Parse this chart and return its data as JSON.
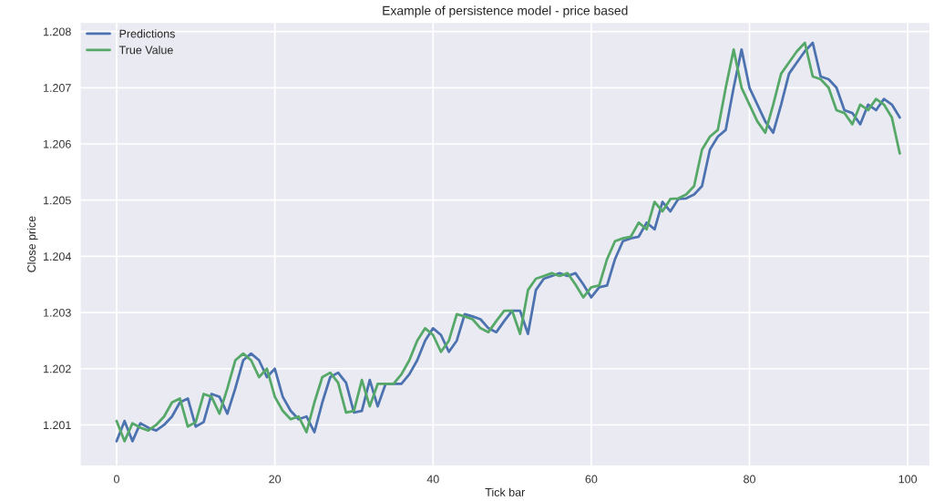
{
  "chart_data": {
    "type": "line",
    "title": "Example of persistence model - price based",
    "xlabel": "Tick bar",
    "ylabel": "Close price",
    "x": [
      0,
      1,
      2,
      3,
      4,
      5,
      6,
      7,
      8,
      9,
      10,
      11,
      12,
      13,
      14,
      15,
      16,
      17,
      18,
      19,
      20,
      21,
      22,
      23,
      24,
      25,
      26,
      27,
      28,
      29,
      30,
      31,
      32,
      33,
      34,
      35,
      36,
      37,
      38,
      39,
      40,
      41,
      42,
      43,
      44,
      45,
      46,
      47,
      48,
      49,
      50,
      51,
      52,
      53,
      54,
      55,
      56,
      57,
      58,
      59,
      60,
      61,
      62,
      63,
      64,
      65,
      66,
      67,
      68,
      69,
      70,
      71,
      72,
      73,
      74,
      75,
      76,
      77,
      78,
      79,
      80,
      81,
      82,
      83,
      84,
      85,
      86,
      87,
      88,
      89,
      90,
      91,
      92,
      93,
      94,
      95,
      96,
      97,
      98,
      99
    ],
    "series": [
      {
        "name": "Predictions",
        "color": "#4c72b0",
        "values": [
          1.20071,
          1.20107,
          1.20071,
          1.20103,
          1.20095,
          1.2009,
          1.201,
          1.20115,
          1.2014,
          1.20147,
          1.20097,
          1.20105,
          1.20155,
          1.2015,
          1.2012,
          1.20165,
          1.20215,
          1.20227,
          1.20215,
          1.20185,
          1.202,
          1.2015,
          1.20125,
          1.2011,
          1.20115,
          1.20087,
          1.2014,
          1.20185,
          1.20193,
          1.20175,
          1.20122,
          1.20125,
          1.2018,
          1.20133,
          1.20173,
          1.20173,
          1.20173,
          1.2019,
          1.20215,
          1.2025,
          1.20272,
          1.2026,
          1.2023,
          1.2025,
          1.20297,
          1.20293,
          1.20288,
          1.20272,
          1.20265,
          1.20285,
          1.20303,
          1.20303,
          1.20262,
          1.2034,
          1.2036,
          1.20365,
          1.2037,
          1.20365,
          1.2037,
          1.2035,
          1.20327,
          1.20345,
          1.20348,
          1.20395,
          1.20427,
          1.20432,
          1.20435,
          1.2046,
          1.20448,
          1.20497,
          1.2048,
          1.20502,
          1.20503,
          1.2051,
          1.20525,
          1.2059,
          1.20613,
          1.20625,
          1.207,
          1.20768,
          1.207,
          1.2067,
          1.2064,
          1.2062,
          1.2067,
          1.20725,
          1.20745,
          1.20765,
          1.2078,
          1.2072,
          1.20715,
          1.207,
          1.2066,
          1.20655,
          1.20635,
          1.2067,
          1.2066,
          1.2068,
          1.2067,
          1.20647
        ]
      },
      {
        "name": "True Value",
        "color": "#55a868",
        "values": [
          1.20107,
          1.20071,
          1.20103,
          1.20095,
          1.2009,
          1.201,
          1.20115,
          1.2014,
          1.20147,
          1.20097,
          1.20105,
          1.20155,
          1.2015,
          1.2012,
          1.20165,
          1.20215,
          1.20227,
          1.20215,
          1.20185,
          1.202,
          1.2015,
          1.20125,
          1.2011,
          1.20115,
          1.20087,
          1.2014,
          1.20185,
          1.20193,
          1.20175,
          1.20122,
          1.20125,
          1.2018,
          1.20133,
          1.20173,
          1.20173,
          1.20173,
          1.2019,
          1.20215,
          1.2025,
          1.20272,
          1.2026,
          1.2023,
          1.2025,
          1.20297,
          1.20293,
          1.20288,
          1.20272,
          1.20265,
          1.20285,
          1.20303,
          1.20303,
          1.20262,
          1.2034,
          1.2036,
          1.20365,
          1.2037,
          1.20365,
          1.2037,
          1.2035,
          1.20327,
          1.20345,
          1.20348,
          1.20395,
          1.20427,
          1.20432,
          1.20435,
          1.2046,
          1.20448,
          1.20497,
          1.2048,
          1.20502,
          1.20503,
          1.2051,
          1.20525,
          1.2059,
          1.20613,
          1.20625,
          1.207,
          1.20768,
          1.207,
          1.2067,
          1.2064,
          1.2062,
          1.2067,
          1.20725,
          1.20745,
          1.20765,
          1.2078,
          1.2072,
          1.20715,
          1.207,
          1.2066,
          1.20655,
          1.20635,
          1.2067,
          1.2066,
          1.2068,
          1.2067,
          1.20647,
          1.20583
        ]
      }
    ],
    "xlim": [
      -4.6,
      102.8
    ],
    "xticks": [
      0,
      20,
      40,
      60,
      80,
      100
    ],
    "ylim": [
      1.20027,
      1.20816
    ],
    "yticks": [
      1.201,
      1.202,
      1.203,
      1.204,
      1.205,
      1.206,
      1.207,
      1.208
    ],
    "grid": true,
    "legend": "top left"
  }
}
